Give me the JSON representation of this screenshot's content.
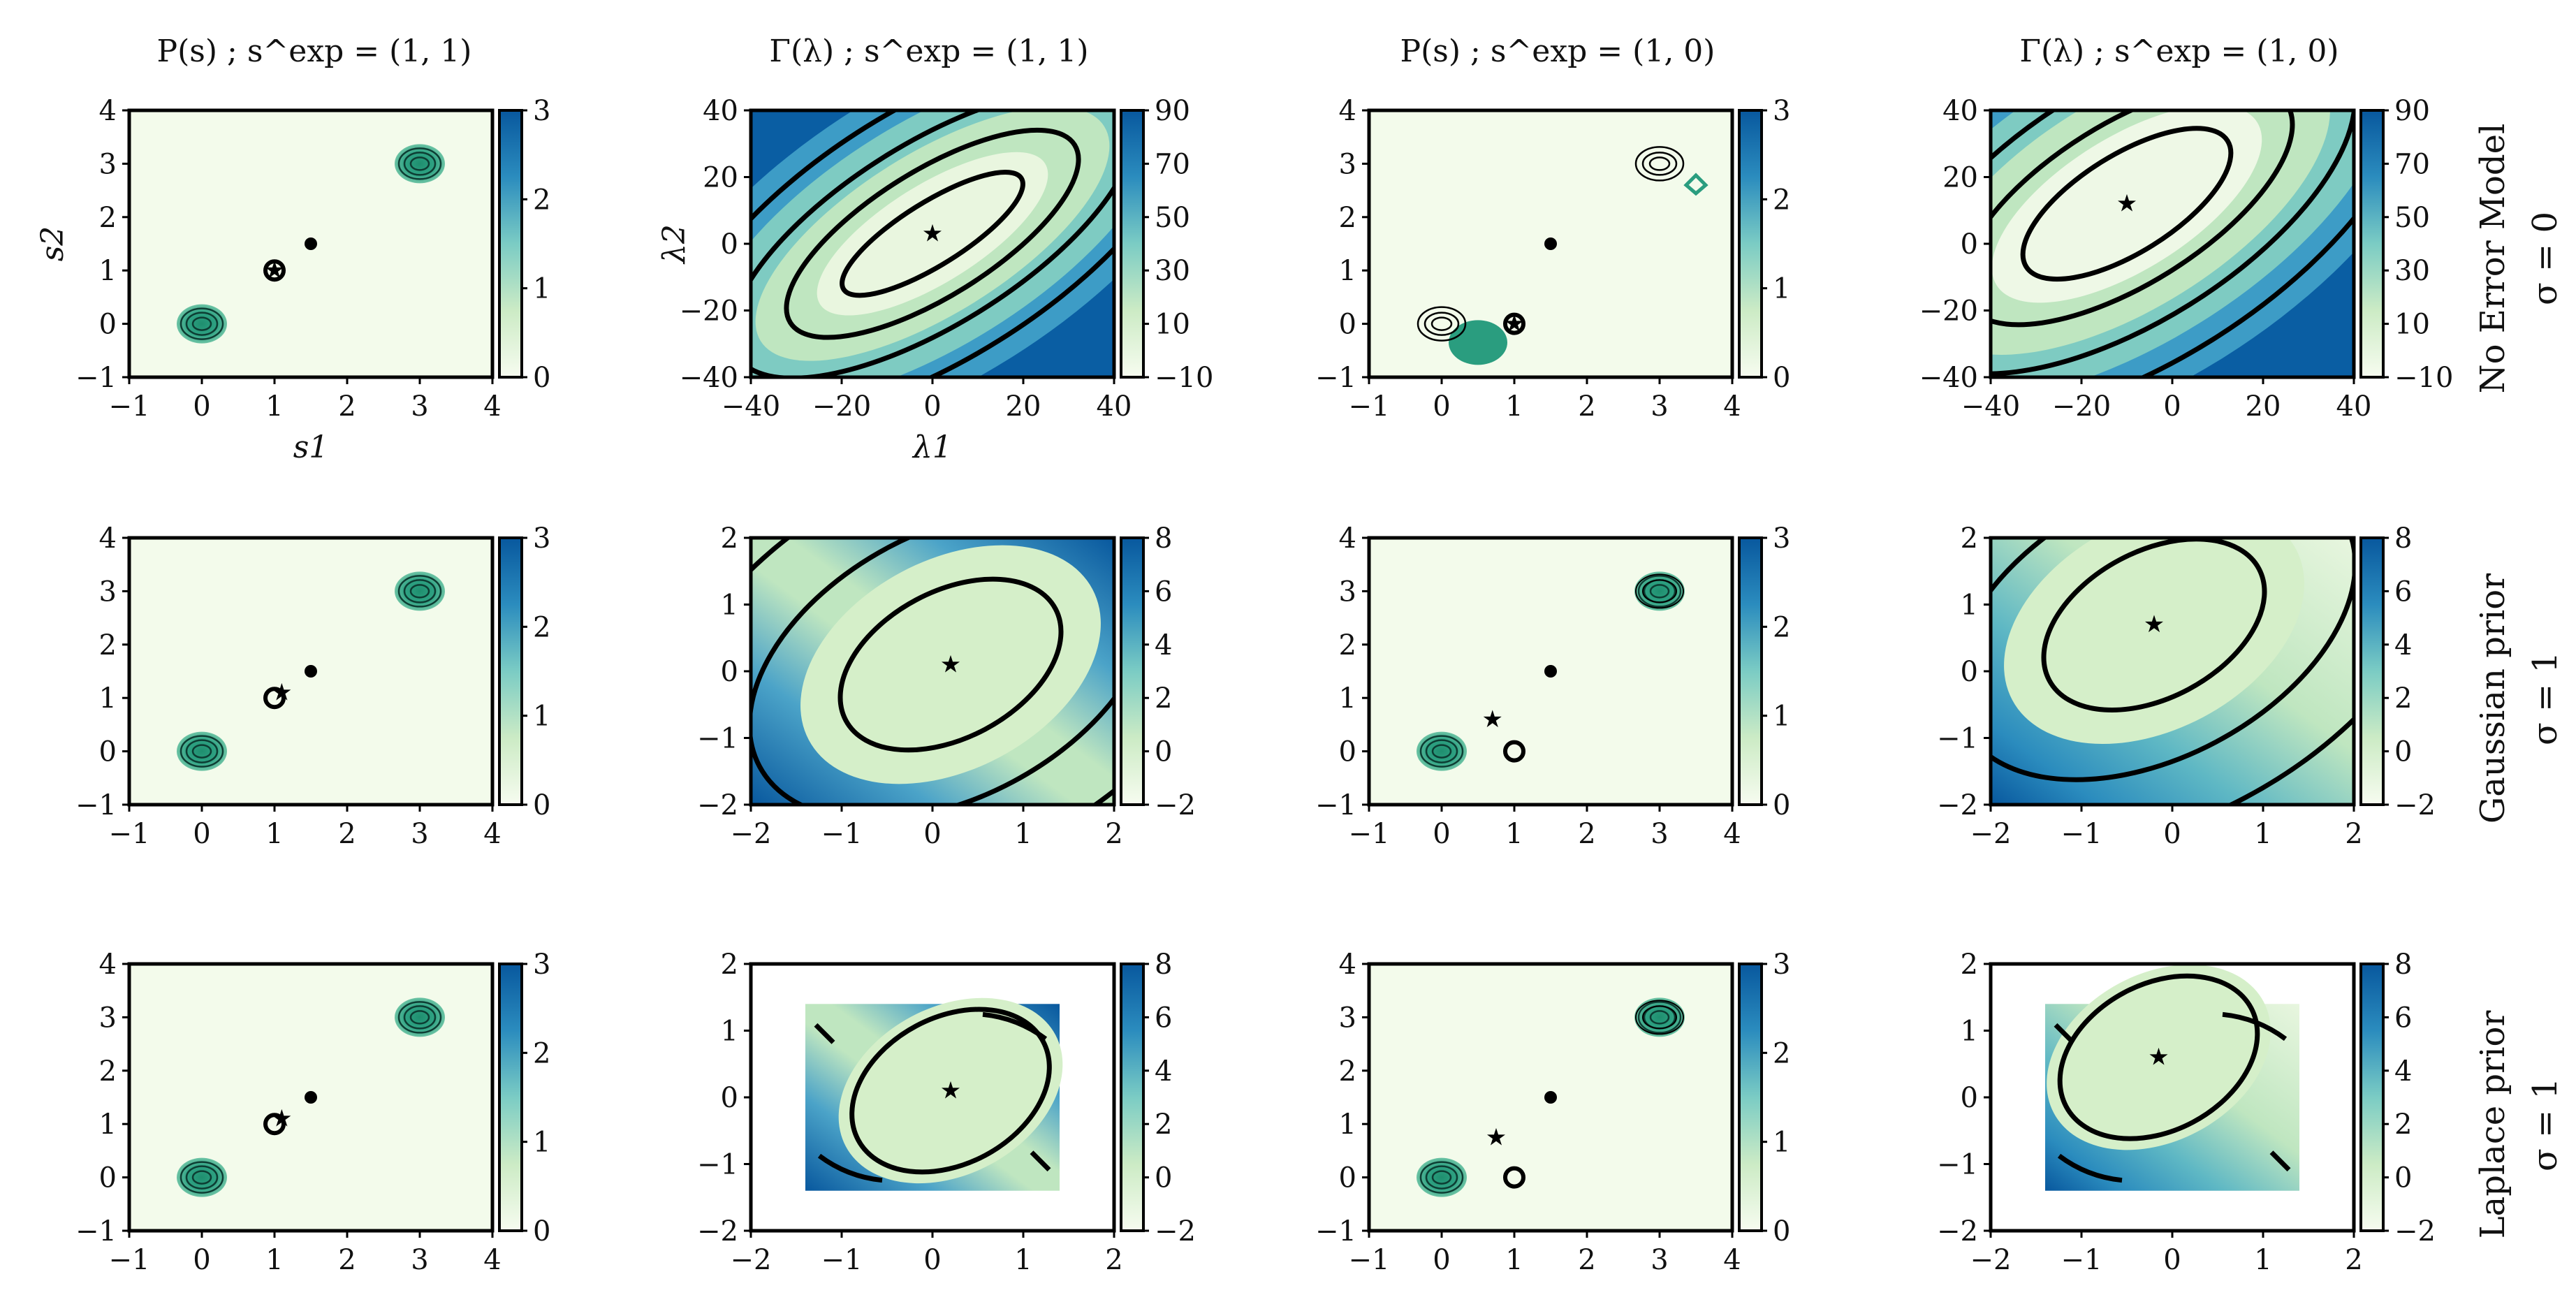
{
  "figure": {
    "column_titles": [
      "P(s) ; s^exp = (1, 1)",
      "Γ(λ) ; s^exp = (1, 1)",
      "P(s) ; s^exp = (1, 0)",
      "Γ(λ) ; s^exp = (1, 0)"
    ],
    "row_labels": [
      {
        "name": "No Error Model",
        "sigma": "σ = 0"
      },
      {
        "name": "Gaussian prior",
        "sigma": "σ = 1"
      },
      {
        "name": "Laplace prior",
        "sigma": "σ = 1"
      }
    ],
    "colors": {
      "cmap_low": "#f7fcf0",
      "cmap_mid": "#7bccc4",
      "cmap_high": "#08589e",
      "contour": "#000000",
      "teal_contour": "#2a9d7f"
    }
  },
  "chart_data": [
    {
      "panel": "row1-col1",
      "type": "heatmap",
      "xlabel": "s1",
      "ylabel": "s2",
      "xlim": [
        -1,
        4
      ],
      "ylim": [
        -1,
        4
      ],
      "xticks": [
        "−1",
        "0",
        "1",
        "2",
        "3",
        "4"
      ],
      "yticks": [
        "−1",
        "0",
        "1",
        "2",
        "3",
        "4"
      ],
      "colorbar_ticks": [
        "0",
        "1",
        "2",
        "3"
      ],
      "peaks": [
        [
          0,
          0
        ],
        [
          3,
          3
        ]
      ],
      "filled_point": [
        1.5,
        1.5
      ],
      "open_circle": [
        1,
        1
      ],
      "star": [
        1,
        1
      ]
    },
    {
      "panel": "row1-col2",
      "type": "heatmap",
      "xlabel": "λ1",
      "ylabel": "λ2",
      "xlim": [
        -40,
        40
      ],
      "ylim": [
        -40,
        40
      ],
      "xticks": [
        "−40",
        "−20",
        "0",
        "20",
        "40"
      ],
      "yticks": [
        "−40",
        "−20",
        "0",
        "20",
        "40"
      ],
      "colorbar_ticks": [
        "−10",
        "10",
        "30",
        "50",
        "70",
        "90"
      ],
      "star": [
        0,
        3
      ]
    },
    {
      "panel": "row1-col3",
      "type": "heatmap",
      "xlim": [
        -1,
        4
      ],
      "ylim": [
        -1,
        4
      ],
      "xticks": [
        "−1",
        "0",
        "1",
        "2",
        "3",
        "4"
      ],
      "yticks": [
        "−1",
        "0",
        "1",
        "2",
        "3",
        "4"
      ],
      "colorbar_ticks": [
        "0",
        "1",
        "2",
        "3"
      ],
      "peaks": [
        [
          0.5,
          -0.35
        ],
        [
          3.5,
          2.6
        ]
      ],
      "filled_point": [
        1.5,
        1.5
      ],
      "open_circle": [
        1,
        0
      ],
      "star": [
        1,
        0
      ]
    },
    {
      "panel": "row1-col4",
      "type": "heatmap",
      "xlim": [
        -40,
        40
      ],
      "ylim": [
        -40,
        40
      ],
      "xticks": [
        "−40",
        "−20",
        "0",
        "20",
        "40"
      ],
      "yticks": [
        "−40",
        "−20",
        "0",
        "20",
        "40"
      ],
      "colorbar_ticks": [
        "−10",
        "10",
        "30",
        "50",
        "70",
        "90"
      ],
      "star": [
        -10,
        12
      ]
    },
    {
      "panel": "row2-col1",
      "type": "heatmap",
      "xlim": [
        -1,
        4
      ],
      "ylim": [
        -1,
        4
      ],
      "xticks": [
        "−1",
        "0",
        "1",
        "2",
        "3",
        "4"
      ],
      "yticks": [
        "−1",
        "0",
        "1",
        "2",
        "3",
        "4"
      ],
      "colorbar_ticks": [
        "0",
        "1",
        "2",
        "3"
      ],
      "peaks": [
        [
          0,
          0
        ],
        [
          3,
          3
        ]
      ],
      "filled_point": [
        1.5,
        1.5
      ],
      "open_circle": [
        1,
        1
      ],
      "star": [
        1.1,
        1.1
      ]
    },
    {
      "panel": "row2-col2",
      "type": "heatmap",
      "xlim": [
        -2,
        2
      ],
      "ylim": [
        -2,
        2
      ],
      "xticks": [
        "−2",
        "−1",
        "0",
        "1",
        "2"
      ],
      "yticks": [
        "−2",
        "−1",
        "0",
        "1",
        "2"
      ],
      "colorbar_ticks": [
        "−2",
        "0",
        "2",
        "4",
        "6",
        "8"
      ],
      "star": [
        0.2,
        0.1
      ]
    },
    {
      "panel": "row2-col3",
      "type": "heatmap",
      "xlim": [
        -1,
        4
      ],
      "ylim": [
        -1,
        4
      ],
      "xticks": [
        "−1",
        "0",
        "1",
        "2",
        "3",
        "4"
      ],
      "yticks": [
        "−1",
        "0",
        "1",
        "2",
        "3",
        "4"
      ],
      "colorbar_ticks": [
        "0",
        "1",
        "2",
        "3"
      ],
      "peaks": [
        [
          0,
          0
        ],
        [
          3,
          3
        ]
      ],
      "filled_point": [
        1.5,
        1.5
      ],
      "open_circle": [
        1,
        0
      ],
      "star": [
        0.7,
        0.6
      ]
    },
    {
      "panel": "row2-col4",
      "type": "heatmap",
      "xlim": [
        -2,
        2
      ],
      "ylim": [
        -2,
        2
      ],
      "xticks": [
        "−2",
        "−1",
        "0",
        "1",
        "2"
      ],
      "yticks": [
        "−2",
        "−1",
        "0",
        "1",
        "2"
      ],
      "colorbar_ticks": [
        "−2",
        "0",
        "2",
        "4",
        "6",
        "8"
      ],
      "star": [
        -0.2,
        0.7
      ]
    },
    {
      "panel": "row3-col1",
      "type": "heatmap",
      "xlim": [
        -1,
        4
      ],
      "ylim": [
        -1,
        4
      ],
      "xticks": [
        "−1",
        "0",
        "1",
        "2",
        "3",
        "4"
      ],
      "yticks": [
        "−1",
        "0",
        "1",
        "2",
        "3",
        "4"
      ],
      "colorbar_ticks": [
        "0",
        "1",
        "2",
        "3"
      ],
      "peaks": [
        [
          0,
          0
        ],
        [
          3,
          3
        ]
      ],
      "filled_point": [
        1.5,
        1.5
      ],
      "open_circle": [
        1,
        1
      ],
      "star": [
        1.1,
        1.1
      ]
    },
    {
      "panel": "row3-col2",
      "type": "heatmap",
      "xlim": [
        -2,
        2
      ],
      "ylim": [
        -2,
        2
      ],
      "data_extent": [
        -1.4,
        1.4
      ],
      "xticks": [
        "−2",
        "−1",
        "0",
        "1",
        "2"
      ],
      "yticks": [
        "−2",
        "−1",
        "0",
        "1",
        "2"
      ],
      "colorbar_ticks": [
        "−2",
        "0",
        "2",
        "4",
        "6",
        "8"
      ],
      "star": [
        0.2,
        0.1
      ]
    },
    {
      "panel": "row3-col3",
      "type": "heatmap",
      "xlim": [
        -1,
        4
      ],
      "ylim": [
        -1,
        4
      ],
      "xticks": [
        "−1",
        "0",
        "1",
        "2",
        "3",
        "4"
      ],
      "yticks": [
        "−1",
        "0",
        "1",
        "2",
        "3",
        "4"
      ],
      "colorbar_ticks": [
        "0",
        "1",
        "2",
        "3"
      ],
      "peaks": [
        [
          0,
          0
        ],
        [
          3,
          3
        ]
      ],
      "filled_point": [
        1.5,
        1.5
      ],
      "open_circle": [
        1,
        0
      ],
      "star": [
        0.75,
        0.75
      ]
    },
    {
      "panel": "row3-col4",
      "type": "heatmap",
      "xlim": [
        -2,
        2
      ],
      "ylim": [
        -2,
        2
      ],
      "data_extent": [
        -1.4,
        1.4
      ],
      "xticks": [
        "−2",
        "−1",
        "0",
        "1",
        "2"
      ],
      "yticks": [
        "−2",
        "−1",
        "0",
        "1",
        "2"
      ],
      "colorbar_ticks": [
        "−2",
        "0",
        "2",
        "4",
        "6",
        "8"
      ],
      "star": [
        -0.15,
        0.6
      ]
    }
  ]
}
